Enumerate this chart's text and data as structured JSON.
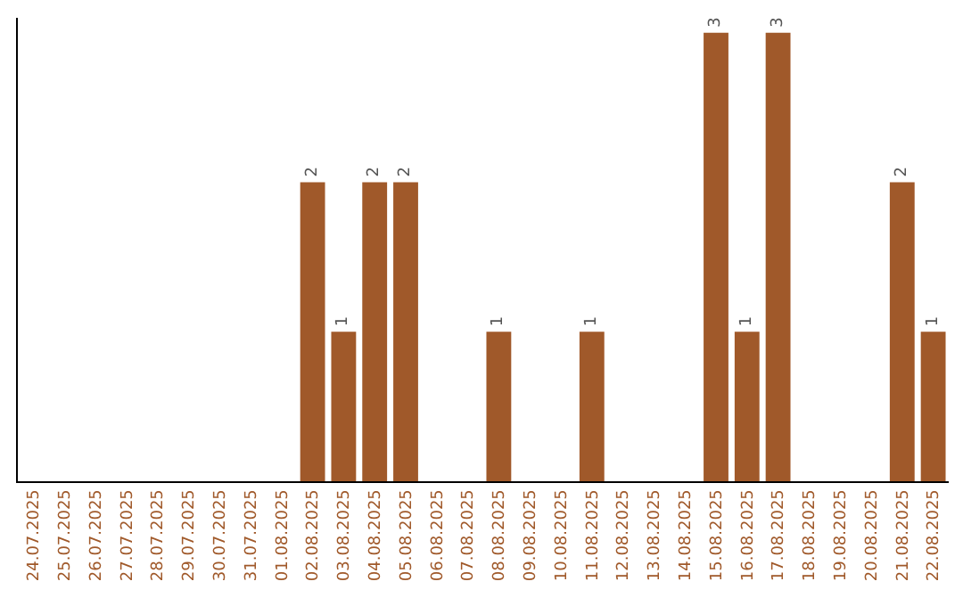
{
  "chart_data": {
    "type": "bar",
    "categories": [
      "24.07.2025",
      "25.07.2025",
      "26.07.2025",
      "27.07.2025",
      "28.07.2025",
      "29.07.2025",
      "30.07.2025",
      "31.07.2025",
      "01.08.2025",
      "02.08.2025",
      "03.08.2025",
      "04.08.2025",
      "05.08.2025",
      "06.08.2025",
      "07.08.2025",
      "08.08.2025",
      "09.08.2025",
      "10.08.2025",
      "11.08.2025",
      "12.08.2025",
      "13.08.2025",
      "14.08.2025",
      "15.08.2025",
      "16.08.2025",
      "17.08.2025",
      "18.08.2025",
      "19.08.2025",
      "20.08.2025",
      "21.08.2025",
      "22.08.2025"
    ],
    "values": [
      0,
      0,
      0,
      0,
      0,
      0,
      0,
      0,
      0,
      2,
      1,
      2,
      2,
      0,
      0,
      1,
      0,
      0,
      1,
      0,
      0,
      0,
      3,
      1,
      3,
      0,
      0,
      0,
      2,
      1
    ],
    "value_labels": [
      null,
      null,
      null,
      null,
      null,
      null,
      null,
      null,
      null,
      "2",
      "1",
      "2",
      "2",
      null,
      null,
      "1",
      null,
      null,
      "1",
      null,
      null,
      null,
      "3",
      "1",
      "3",
      null,
      null,
      null,
      "2",
      "1"
    ],
    "color": "#a0592a",
    "ylim": [
      0,
      3.1
    ],
    "tick_labels": "x"
  }
}
